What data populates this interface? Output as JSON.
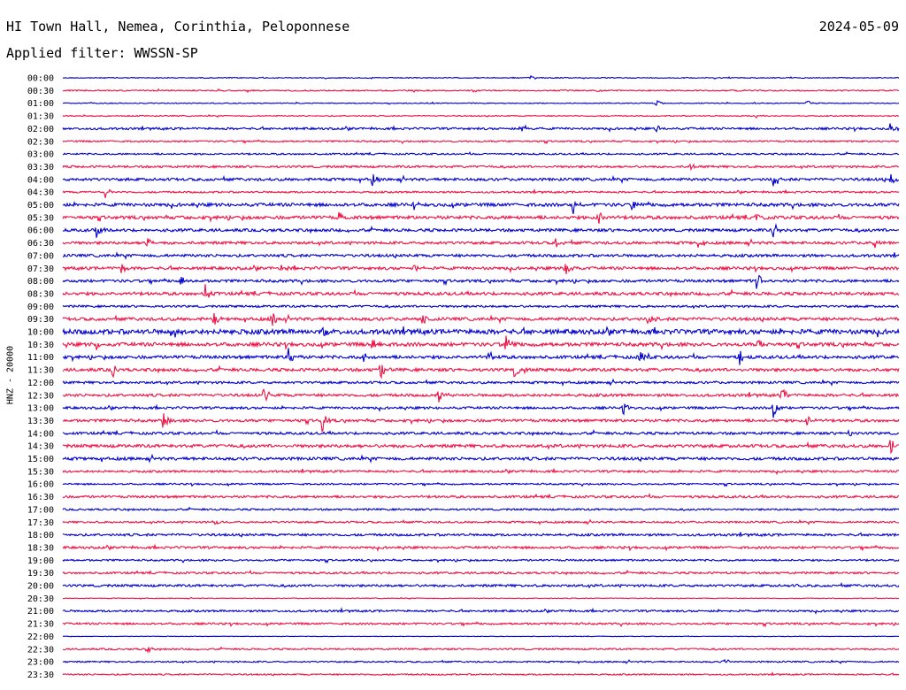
{
  "header": {
    "station": "HI Town Hall, Nemea, Corinthia, Peloponnese",
    "date": "2024-05-09",
    "filter": "Applied filter: WWSSN-SP"
  },
  "axis": {
    "channel_label": "HNZ - 20000"
  },
  "colors": {
    "trace_a": "#0000cc",
    "trace_b": "#ee1144"
  },
  "chart_data": {
    "type": "line",
    "title": "",
    "ylabel": "HNZ - 20000",
    "grid": false,
    "series_color_cycle": [
      "#0000cc",
      "#ee1144"
    ],
    "row_labels": [
      "00:00",
      "00:30",
      "01:00",
      "01:30",
      "02:00",
      "02:30",
      "03:00",
      "03:30",
      "04:00",
      "04:30",
      "05:00",
      "05:30",
      "06:00",
      "06:30",
      "07:00",
      "07:30",
      "08:00",
      "08:30",
      "09:00",
      "09:30",
      "10:00",
      "10:30",
      "11:00",
      "11:30",
      "12:00",
      "12:30",
      "13:00",
      "13:30",
      "14:00",
      "14:30",
      "15:00",
      "15:30",
      "16:00",
      "16:30",
      "17:00",
      "17:30",
      "18:00",
      "18:30",
      "19:00",
      "19:30",
      "20:00",
      "20:30",
      "21:00",
      "21:30",
      "22:00",
      "22:30",
      "23:00",
      "23:30"
    ],
    "noise_level": [
      0.5,
      0.7,
      0.5,
      0.6,
      1.2,
      0.9,
      0.9,
      1.2,
      1.5,
      1.0,
      1.8,
      1.8,
      1.6,
      1.5,
      1.5,
      1.6,
      1.5,
      1.7,
      1.2,
      1.7,
      2.6,
      2.0,
      1.7,
      1.7,
      1.3,
      1.5,
      1.3,
      1.5,
      1.4,
      1.7,
      1.6,
      1.2,
      0.9,
      1.3,
      1.0,
      1.0,
      1.3,
      1.3,
      1.0,
      1.1,
      1.3,
      0.4,
      1.1,
      1.1,
      0.3,
      0.9,
      0.8,
      0.8
    ],
    "events": [
      {
        "row": "00:00",
        "t": 0.56,
        "amp": 2
      },
      {
        "row": "00:30",
        "t": 0.64,
        "amp": 2
      },
      {
        "row": "01:00",
        "t": 0.71,
        "amp": 3
      },
      {
        "row": "01:00",
        "t": 0.89,
        "amp": 3
      },
      {
        "row": "01:30",
        "t": 0.83,
        "amp": 3
      },
      {
        "row": "02:00",
        "t": 0.55,
        "amp": 4
      },
      {
        "row": "02:00",
        "t": 0.71,
        "amp": 4
      },
      {
        "row": "02:00",
        "t": 0.99,
        "amp": 6
      },
      {
        "row": "03:30",
        "t": 0.75,
        "amp": 6
      },
      {
        "row": "04:00",
        "t": 0.37,
        "amp": 6
      },
      {
        "row": "04:00",
        "t": 0.85,
        "amp": 10
      },
      {
        "row": "04:00",
        "t": 0.99,
        "amp": 6
      },
      {
        "row": "04:30",
        "t": 0.05,
        "amp": 7
      },
      {
        "row": "05:00",
        "t": 0.42,
        "amp": 5
      },
      {
        "row": "05:00",
        "t": 0.61,
        "amp": 9
      },
      {
        "row": "05:00",
        "t": 0.68,
        "amp": 7
      },
      {
        "row": "05:30",
        "t": 0.33,
        "amp": 6
      },
      {
        "row": "05:30",
        "t": 0.64,
        "amp": 7
      },
      {
        "row": "05:30",
        "t": 0.83,
        "amp": 5
      },
      {
        "row": "06:00",
        "t": 0.04,
        "amp": 7
      },
      {
        "row": "06:00",
        "t": 0.85,
        "amp": 8
      },
      {
        "row": "06:30",
        "t": 0.1,
        "amp": 6
      },
      {
        "row": "06:30",
        "t": 0.59,
        "amp": 5
      },
      {
        "row": "06:30",
        "t": 0.76,
        "amp": 6
      },
      {
        "row": "06:30",
        "t": 0.97,
        "amp": 7
      },
      {
        "row": "07:30",
        "t": 0.07,
        "amp": 6
      },
      {
        "row": "07:30",
        "t": 0.26,
        "amp": 4
      },
      {
        "row": "07:30",
        "t": 0.42,
        "amp": 5
      },
      {
        "row": "07:30",
        "t": 0.6,
        "amp": 8
      },
      {
        "row": "08:00",
        "t": 0.14,
        "amp": 6
      },
      {
        "row": "08:00",
        "t": 0.83,
        "amp": 11
      },
      {
        "row": "08:30",
        "t": 0.17,
        "amp": 10
      },
      {
        "row": "09:30",
        "t": 0.18,
        "amp": 8
      },
      {
        "row": "09:30",
        "t": 0.25,
        "amp": 9
      },
      {
        "row": "09:30",
        "t": 0.43,
        "amp": 6
      },
      {
        "row": "09:30",
        "t": 0.7,
        "amp": 6
      },
      {
        "row": "10:00",
        "t": 0.13,
        "amp": 10
      },
      {
        "row": "10:00",
        "t": 0.2,
        "amp": 5
      },
      {
        "row": "10:00",
        "t": 0.31,
        "amp": 5
      },
      {
        "row": "10:30",
        "t": 0.04,
        "amp": 7
      },
      {
        "row": "10:30",
        "t": 0.37,
        "amp": 6
      },
      {
        "row": "10:30",
        "t": 0.53,
        "amp": 8
      },
      {
        "row": "10:30",
        "t": 0.83,
        "amp": 7
      },
      {
        "row": "11:00",
        "t": 0.27,
        "amp": 10
      },
      {
        "row": "11:00",
        "t": 0.36,
        "amp": 6
      },
      {
        "row": "11:00",
        "t": 0.51,
        "amp": 7
      },
      {
        "row": "11:00",
        "t": 0.69,
        "amp": 8
      },
      {
        "row": "11:00",
        "t": 0.81,
        "amp": 8
      },
      {
        "row": "11:30",
        "t": 0.06,
        "amp": 6
      },
      {
        "row": "11:30",
        "t": 0.38,
        "amp": 12
      },
      {
        "row": "11:30",
        "t": 0.54,
        "amp": 7
      },
      {
        "row": "12:30",
        "t": 0.24,
        "amp": 9
      },
      {
        "row": "12:30",
        "t": 0.45,
        "amp": 8
      },
      {
        "row": "12:30",
        "t": 0.86,
        "amp": 7
      },
      {
        "row": "13:00",
        "t": 0.67,
        "amp": 7
      },
      {
        "row": "13:00",
        "t": 0.85,
        "amp": 10
      },
      {
        "row": "13:30",
        "t": 0.12,
        "amp": 7
      },
      {
        "row": "13:30",
        "t": 0.31,
        "amp": 11
      },
      {
        "row": "13:30",
        "t": 0.89,
        "amp": 5
      },
      {
        "row": "14:00",
        "t": 0.94,
        "amp": 4
      },
      {
        "row": "14:30",
        "t": 0.99,
        "amp": 8
      },
      {
        "row": "17:30",
        "t": 0.18,
        "amp": 4
      },
      {
        "row": "20:00",
        "t": 0.88,
        "amp": 4
      },
      {
        "row": "22:30",
        "t": 0.1,
        "amp": 4
      },
      {
        "row": "23:00",
        "t": 0.79,
        "amp": 3
      }
    ]
  }
}
